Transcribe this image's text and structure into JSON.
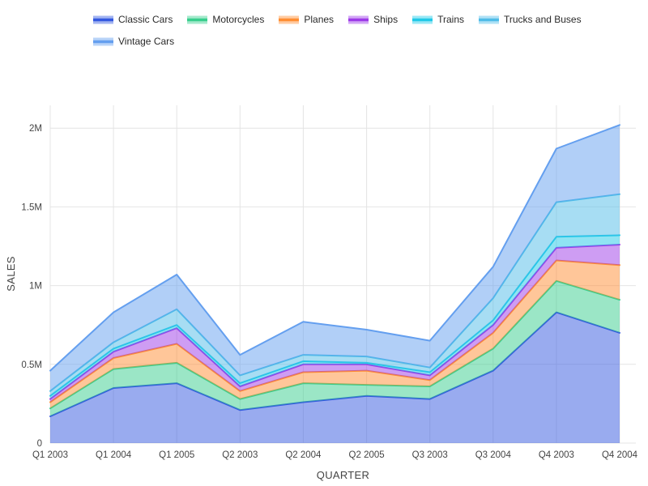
{
  "chart_data": {
    "type": "area",
    "stacked": true,
    "title": "",
    "xlabel": "QUARTER",
    "ylabel": "SALES",
    "ylim": [
      0,
      2145000
    ],
    "grid": true,
    "legend_position": "top",
    "yticks": [
      {
        "value": 0,
        "label": "0"
      },
      {
        "value": 500000,
        "label": "0.5M"
      },
      {
        "value": 1000000,
        "label": "1M"
      },
      {
        "value": 1500000,
        "label": "1.5M"
      },
      {
        "value": 2000000,
        "label": "2M"
      }
    ],
    "categories": [
      "Q1 2003",
      "Q1 2004",
      "Q1 2005",
      "Q2 2003",
      "Q2 2004",
      "Q2 2005",
      "Q3 2003",
      "Q3 2004",
      "Q4 2003",
      "Q4 2004"
    ],
    "series": [
      {
        "name": "Classic Cars",
        "color": "#3358E0",
        "values": [
          170000,
          350000,
          380000,
          210000,
          260000,
          300000,
          280000,
          460000,
          830000,
          700000
        ]
      },
      {
        "name": "Motorcycles",
        "color": "#38CE8D",
        "values": [
          50000,
          120000,
          130000,
          70000,
          120000,
          70000,
          80000,
          140000,
          200000,
          210000
        ]
      },
      {
        "name": "Planes",
        "color": "#FF8E33",
        "values": [
          40000,
          70000,
          120000,
          50000,
          70000,
          90000,
          40000,
          100000,
          130000,
          220000
        ]
      },
      {
        "name": "Ships",
        "color": "#9D3BE8",
        "values": [
          20000,
          40000,
          100000,
          30000,
          50000,
          40000,
          30000,
          50000,
          80000,
          130000
        ]
      },
      {
        "name": "Trains",
        "color": "#20C9E8",
        "values": [
          20000,
          20000,
          20000,
          20000,
          20000,
          10000,
          20000,
          30000,
          70000,
          60000
        ]
      },
      {
        "name": "Trucks and Buses",
        "color": "#4FBCE8",
        "values": [
          30000,
          40000,
          100000,
          50000,
          40000,
          40000,
          30000,
          140000,
          220000,
          260000
        ]
      },
      {
        "name": "Vintage Cars",
        "color": "#649FEF",
        "values": [
          130000,
          190000,
          220000,
          130000,
          210000,
          170000,
          170000,
          200000,
          340000,
          440000
        ]
      }
    ]
  }
}
